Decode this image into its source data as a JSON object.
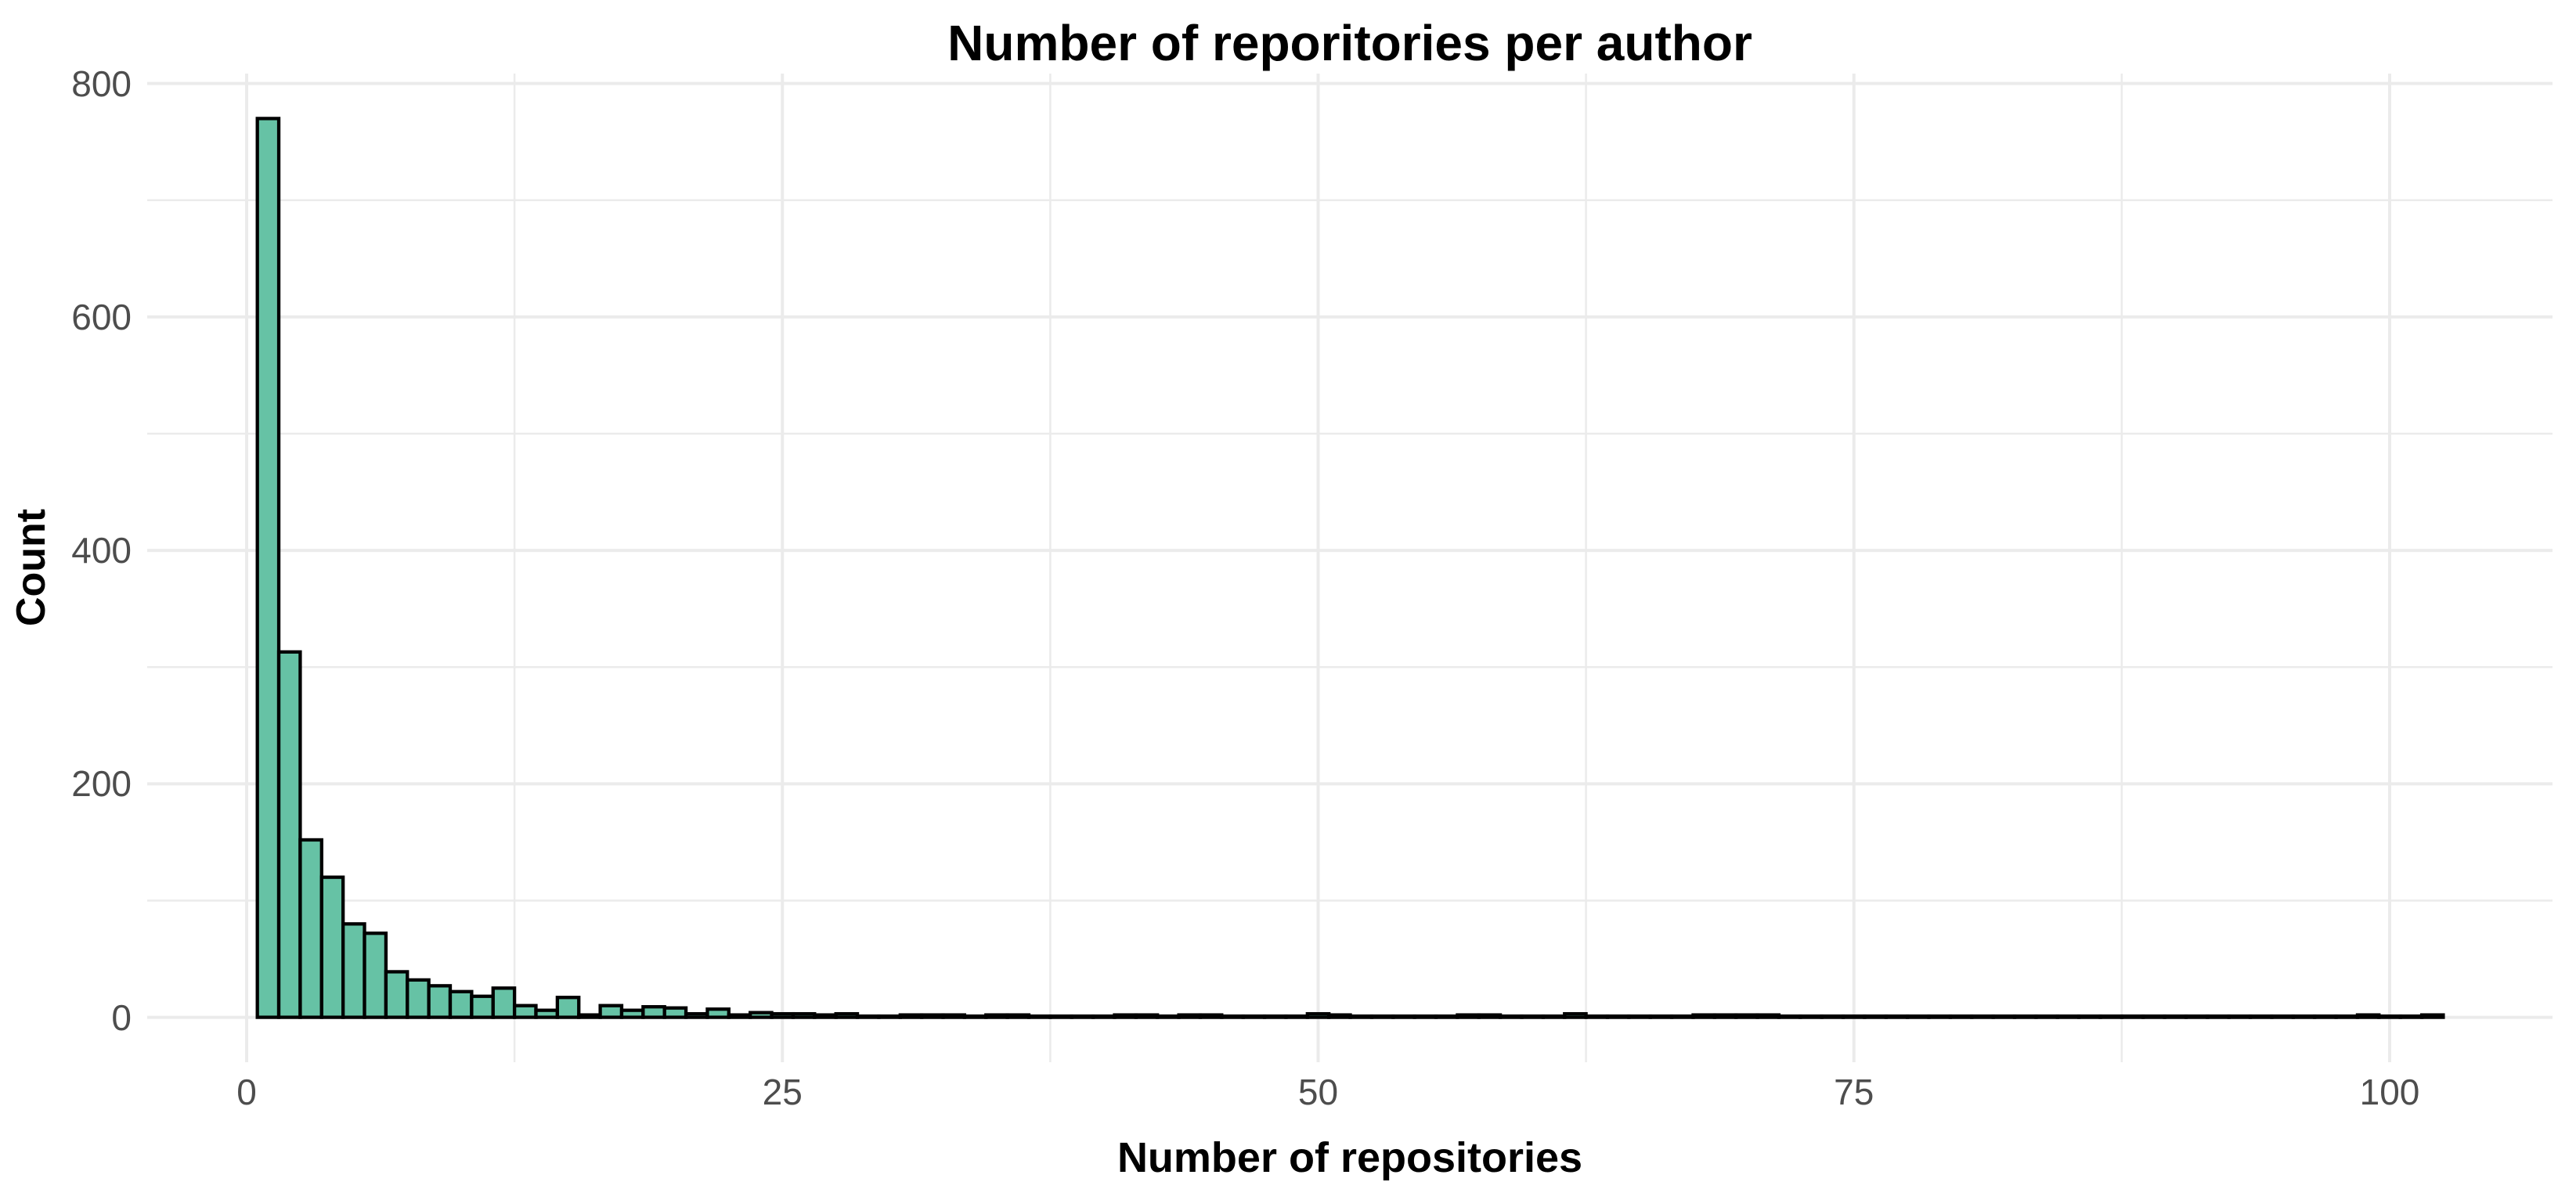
{
  "page": {
    "background_color": "#FFFFFF"
  },
  "chart": {
    "title": "Number of reporitories per author",
    "x_axis": {
      "label": "Number of repositories",
      "tick_labels": [
        "0",
        "25",
        "50",
        "75",
        "100"
      ],
      "tick_values": [
        0,
        25,
        50,
        75,
        100
      ],
      "minor_gridline_values": [
        12.5,
        37.5,
        62.5,
        87.5
      ],
      "range": [
        -4.64,
        107.6
      ]
    },
    "y_axis": {
      "label": "Count",
      "tick_labels": [
        "0",
        "200",
        "400",
        "600",
        "800"
      ],
      "tick_values": [
        0,
        200,
        400,
        600,
        800
      ],
      "minor_gridline_values": [
        100,
        300,
        500,
        700
      ],
      "range": [
        -38.5,
        808.5
      ]
    },
    "colors": {
      "bar_fill": "#66C2A5",
      "bar_stroke": "#000000",
      "gridline": "#EBEBEB",
      "tick_label": "#4D4D4D",
      "title_text": "#000000",
      "panel_background": "#FFFFFF"
    }
  },
  "chart_data": {
    "type": "bar",
    "subtype": "histogram",
    "title": "Number of reporitories per author",
    "xlabel": "Number of repositories",
    "ylabel": "Count",
    "legend": "none",
    "grid": "major-and-minor",
    "bin_width": 1,
    "first_bin_center": 1,
    "xlim": [
      -4.64,
      107.6
    ],
    "ylim": [
      -38.5,
      808.5
    ],
    "values": [
      770,
      313,
      152,
      120,
      80,
      72,
      39,
      32,
      27,
      22,
      18,
      25,
      10,
      6,
      17,
      2,
      10,
      6,
      9,
      8,
      3,
      7,
      2,
      4,
      3,
      3,
      2,
      3,
      1,
      1,
      2,
      2,
      2,
      1,
      2,
      2,
      1,
      1,
      1,
      1,
      2,
      2,
      1,
      2,
      2,
      1,
      1,
      1,
      1,
      3,
      2,
      1,
      1,
      1,
      1,
      1,
      2,
      2,
      1,
      1,
      1,
      3,
      1,
      1,
      1,
      1,
      1,
      2,
      2,
      2,
      2,
      1,
      1,
      1,
      1,
      1,
      1,
      1,
      1,
      1,
      1,
      1,
      1,
      1,
      1,
      1,
      1,
      1,
      1,
      1,
      1,
      1,
      1,
      1,
      1,
      1,
      1,
      1,
      2,
      1,
      1,
      2
    ]
  }
}
